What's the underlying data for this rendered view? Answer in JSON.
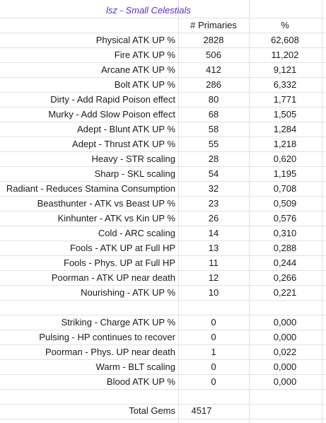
{
  "sheet": {
    "title": "lsz - Small Celestials",
    "headers": {
      "primaries": "# Primaries",
      "percent": "%"
    },
    "rows": [
      {
        "label": "Physical ATK UP %",
        "count": "2828",
        "pct": "62,608"
      },
      {
        "label": "Fire ATK UP %",
        "count": "506",
        "pct": "11,202"
      },
      {
        "label": "Arcane ATK UP %",
        "count": "412",
        "pct": "9,121"
      },
      {
        "label": "Bolt ATK UP %",
        "count": "286",
        "pct": "6,332"
      },
      {
        "label": "Dirty - Add Rapid Poison effect",
        "count": "80",
        "pct": "1,771"
      },
      {
        "label": "Murky - Add Slow Poison effect",
        "count": "68",
        "pct": "1,505"
      },
      {
        "label": "Adept - Blunt ATK UP %",
        "count": "58",
        "pct": "1,284"
      },
      {
        "label": "Adept - Thrust ATK UP %",
        "count": "55",
        "pct": "1,218"
      },
      {
        "label": "Heavy - STR scaling",
        "count": "28",
        "pct": "0,620"
      },
      {
        "label": "Sharp - SKL scaling",
        "count": "54",
        "pct": "1,195"
      },
      {
        "label": "Radiant - Reduces Stamina Consumption",
        "count": "32",
        "pct": "0,708"
      },
      {
        "label": "Beasthunter - ATK vs Beast UP %",
        "count": "23",
        "pct": "0,509"
      },
      {
        "label": "Kinhunter - ATK vs Kin UP %",
        "count": "26",
        "pct": "0,576"
      },
      {
        "label": "Cold - ARC scaling",
        "count": "14",
        "pct": "0,310"
      },
      {
        "label": "Fools - ATK UP at Full HP",
        "count": "13",
        "pct": "0,288"
      },
      {
        "label": "Fools - Phys. UP at Full HP",
        "count": "11",
        "pct": "0,244"
      },
      {
        "label": "Poorman - ATK UP near death",
        "count": "12",
        "pct": "0,266"
      },
      {
        "label": "Nourishing - ATK UP %",
        "count": "10",
        "pct": "0,221"
      }
    ],
    "rows2": [
      {
        "label": "Striking - Charge ATK UP %",
        "count": "0",
        "pct": "0,000"
      },
      {
        "label": "Pulsing - HP continues to recover",
        "count": "0",
        "pct": "0,000"
      },
      {
        "label": "Poorman - Phys. UP near death",
        "count": "1",
        "pct": "0,022"
      },
      {
        "label": "Warm - BLT scaling",
        "count": "0",
        "pct": "0,000"
      },
      {
        "label": "Blood ATK UP %",
        "count": "0",
        "pct": "0,000"
      }
    ],
    "total": {
      "label": "Total Gems",
      "value": "4517"
    }
  }
}
